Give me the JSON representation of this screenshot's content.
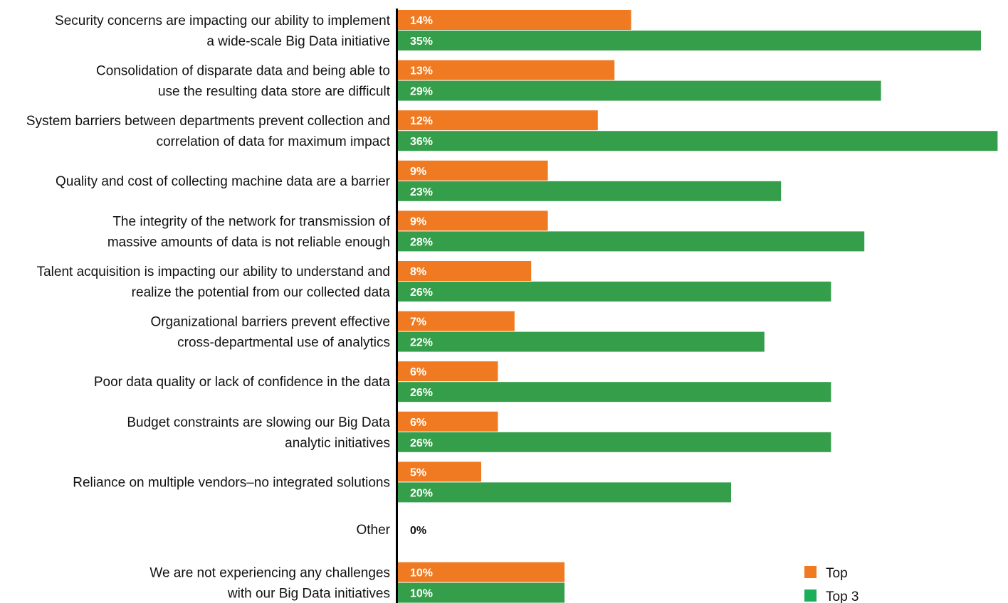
{
  "chart_data": {
    "type": "bar",
    "orientation": "horizontal",
    "title": "",
    "xlabel": "",
    "ylabel": "",
    "grid": false,
    "legend_position": "bottom-right",
    "categories": [
      [
        "Security concerns are impacting our ability to implement",
        "a wide-scale Big Data initiative"
      ],
      [
        "Consolidation of disparate data and being able to",
        "use the resulting data store are difficult"
      ],
      [
        "System barriers between departments prevent collection and",
        "correlation of data for maximum impact"
      ],
      [
        "Quality and cost of collecting machine data are a barrier"
      ],
      [
        "The integrity of the network for transmission of",
        "massive amounts of data is not reliable enough"
      ],
      [
        "Talent acquisition is impacting our ability to understand and",
        "realize the potential from our collected data"
      ],
      [
        "Organizational barriers prevent effective",
        "cross-departmental use of analytics"
      ],
      [
        "Poor data quality or lack of confidence in the data"
      ],
      [
        "Budget constraints are slowing our Big Data",
        "analytic initiatives"
      ],
      [
        "Reliance on multiple vendors–no integrated solutions"
      ],
      [
        "Other"
      ],
      [
        "We are not experiencing any challenges",
        "with our Big Data initiatives"
      ]
    ],
    "series": [
      {
        "name": "Top",
        "color": "#f07a22",
        "values": [
          14,
          13,
          12,
          9,
          9,
          8,
          7,
          6,
          6,
          5,
          0,
          10
        ],
        "labels": [
          "14%",
          "13%",
          "12%",
          "9%",
          "9%",
          "8%",
          "7%",
          "6%",
          "6%",
          "5%",
          "0%",
          "10%"
        ]
      },
      {
        "name": "Top 3",
        "color": "#359e4b",
        "values": [
          35,
          29,
          36,
          23,
          28,
          26,
          22,
          26,
          26,
          20,
          0,
          10
        ],
        "labels": [
          "35%",
          "29%",
          "36%",
          "23%",
          "28%",
          "26%",
          "22%",
          "26%",
          "26%",
          "20%",
          "",
          "10%"
        ]
      }
    ],
    "xlim": [
      0,
      36
    ],
    "legend_colors": [
      "#f07a22",
      "#1aae5a"
    ]
  }
}
